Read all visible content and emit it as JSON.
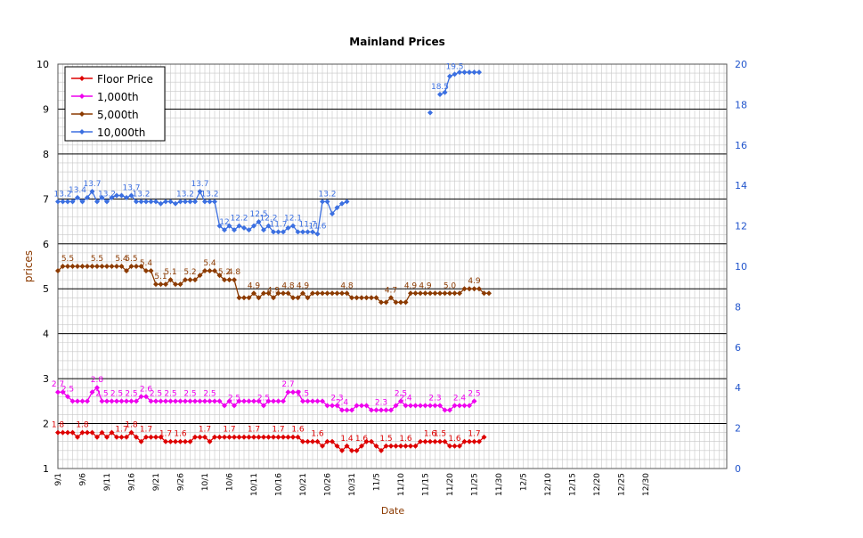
{
  "chart_data": {
    "type": "line",
    "title": "Mainland Prices",
    "xlabel": "Date",
    "ylabel": "prices",
    "y_left_range": [
      1,
      10
    ],
    "y_left_ticks": [
      "1",
      "2",
      "3",
      "4",
      "5",
      "6",
      "7",
      "8",
      "9",
      "10"
    ],
    "y_right_range": [
      0,
      20
    ],
    "y_right_ticks": [
      "0",
      "2",
      "4",
      "6",
      "8",
      "10",
      "12",
      "14",
      "16",
      "18",
      "20"
    ],
    "x_ticks": [
      "9/1",
      "9/6",
      "9/11",
      "9/16",
      "9/21",
      "9/26",
      "10/1",
      "10/6",
      "10/11",
      "10/16",
      "10/21",
      "10/26",
      "10/31",
      "11/5",
      "11/10",
      "11/15",
      "11/20",
      "11/25",
      "11/30",
      "12/5",
      "12/10",
      "12/15",
      "12/20",
      "12/25",
      "12/30"
    ],
    "grid": true,
    "legend_position": "top-left",
    "series": [
      {
        "name": "Floor Price",
        "axis": "left",
        "color": "#dd0000",
        "start_date": "9/1",
        "values": [
          1.8,
          1.8,
          1.8,
          1.8,
          1.7,
          1.8,
          1.8,
          1.8,
          1.7,
          1.8,
          1.7,
          1.8,
          1.7,
          1.7,
          1.7,
          1.8,
          1.7,
          1.6,
          1.7,
          1.7,
          1.7,
          1.7,
          1.6,
          1.6,
          1.6,
          1.6,
          1.6,
          1.6,
          1.7,
          1.7,
          1.7,
          1.6,
          1.7,
          1.7,
          1.7,
          1.7,
          1.7,
          1.7,
          1.7,
          1.7,
          1.7,
          1.7,
          1.7,
          1.7,
          1.7,
          1.7,
          1.7,
          1.7,
          1.7,
          1.7,
          1.6,
          1.6,
          1.6,
          1.6,
          1.5,
          1.6,
          1.6,
          1.5,
          1.4,
          1.5,
          1.4,
          1.4,
          1.5,
          1.6,
          1.6,
          1.5,
          1.4,
          1.5,
          1.5,
          1.5,
          1.5,
          1.5,
          1.5,
          1.5,
          1.6,
          1.6,
          1.6,
          1.6,
          1.6,
          1.6,
          1.5,
          1.5,
          1.5,
          1.6,
          1.6,
          1.6,
          1.6,
          1.7
        ],
        "labels": [
          {
            "date": "9/1",
            "text": "1.8"
          },
          {
            "date": "9/6",
            "text": "1.8"
          },
          {
            "date": "9/14",
            "text": "1.7"
          },
          {
            "date": "9/16",
            "text": "1.8"
          },
          {
            "date": "9/19",
            "text": "1.7"
          },
          {
            "date": "9/23",
            "text": "1.7"
          },
          {
            "date": "9/26",
            "text": "1.6"
          },
          {
            "date": "10/1",
            "text": "1.7"
          },
          {
            "date": "10/6",
            "text": "1.7"
          },
          {
            "date": "10/11",
            "text": "1.7"
          },
          {
            "date": "10/16",
            "text": "1.7"
          },
          {
            "date": "10/20",
            "text": "1.6"
          },
          {
            "date": "10/24",
            "text": "1.6"
          },
          {
            "date": "10/30",
            "text": "1.4"
          },
          {
            "date": "11/2",
            "text": "1.6"
          },
          {
            "date": "11/7",
            "text": "1.5"
          },
          {
            "date": "11/11",
            "text": "1.6"
          },
          {
            "date": "11/16",
            "text": "1.6"
          },
          {
            "date": "11/18",
            "text": "1.5"
          },
          {
            "date": "11/21",
            "text": "1.6"
          },
          {
            "date": "11/25",
            "text": "1.7"
          }
        ]
      },
      {
        "name": "1,000th",
        "axis": "left",
        "color": "#ee00ee",
        "start_date": "9/1",
        "values": [
          2.7,
          2.7,
          2.6,
          2.5,
          2.5,
          2.5,
          2.5,
          2.7,
          2.8,
          2.5,
          2.5,
          2.5,
          2.5,
          2.5,
          2.5,
          2.5,
          2.5,
          2.6,
          2.6,
          2.5,
          2.5,
          2.5,
          2.5,
          2.5,
          2.5,
          2.5,
          2.5,
          2.5,
          2.5,
          2.5,
          2.5,
          2.5,
          2.5,
          2.5,
          2.4,
          2.5,
          2.4,
          2.5,
          2.5,
          2.5,
          2.5,
          2.5,
          2.4,
          2.5,
          2.5,
          2.5,
          2.5,
          2.7,
          2.7,
          2.7,
          2.5,
          2.5,
          2.5,
          2.5,
          2.5,
          2.4,
          2.4,
          2.4,
          2.3,
          2.3,
          2.3,
          2.4,
          2.4,
          2.4,
          2.3,
          2.3,
          2.3,
          2.3,
          2.3,
          2.4,
          2.5,
          2.4,
          2.4,
          2.4,
          2.4,
          2.4,
          2.4,
          2.4,
          2.4,
          2.3,
          2.3,
          2.4,
          2.4,
          2.4,
          2.4,
          2.5
        ],
        "labels": [
          {
            "date": "9/1",
            "text": "2.7"
          },
          {
            "date": "9/3",
            "text": "2.5"
          },
          {
            "date": "9/9",
            "text": "2.8"
          },
          {
            "date": "9/10",
            "text": "2.5"
          },
          {
            "date": "9/13",
            "text": "2.5"
          },
          {
            "date": "9/16",
            "text": "2.5"
          },
          {
            "date": "9/19",
            "text": "2.6"
          },
          {
            "date": "9/21",
            "text": "2.5"
          },
          {
            "date": "9/24",
            "text": "2.5"
          },
          {
            "date": "9/28",
            "text": "2.5"
          },
          {
            "date": "10/2",
            "text": "2.5"
          },
          {
            "date": "10/7",
            "text": "2.5"
          },
          {
            "date": "10/13",
            "text": "2.5"
          },
          {
            "date": "10/18",
            "text": "2.7"
          },
          {
            "date": "10/21",
            "text": "2.5"
          },
          {
            "date": "10/28",
            "text": "2.3"
          },
          {
            "date": "10/29",
            "text": "2.4"
          },
          {
            "date": "11/6",
            "text": "2.3"
          },
          {
            "date": "11/10",
            "text": "2.5"
          },
          {
            "date": "11/11",
            "text": "2.4"
          },
          {
            "date": "11/17",
            "text": "2.3"
          },
          {
            "date": "11/22",
            "text": "2.4"
          },
          {
            "date": "11/25",
            "text": "2.5"
          }
        ]
      },
      {
        "name": "5,000th",
        "axis": "left",
        "color": "#8b3a00",
        "start_date": "9/1",
        "values": [
          5.4,
          5.5,
          5.5,
          5.5,
          5.5,
          5.5,
          5.5,
          5.5,
          5.5,
          5.5,
          5.5,
          5.5,
          5.5,
          5.5,
          5.4,
          5.5,
          5.5,
          5.5,
          5.4,
          5.4,
          5.1,
          5.1,
          5.1,
          5.2,
          5.1,
          5.1,
          5.2,
          5.2,
          5.2,
          5.3,
          5.4,
          5.4,
          5.4,
          5.3,
          5.2,
          5.2,
          5.2,
          4.8,
          4.8,
          4.8,
          4.9,
          4.8,
          4.9,
          4.9,
          4.8,
          4.9,
          4.9,
          4.9,
          4.8,
          4.8,
          4.9,
          4.8,
          4.9,
          4.9,
          4.9,
          4.9,
          4.9,
          4.9,
          4.9,
          4.9,
          4.8,
          4.8,
          4.8,
          4.8,
          4.8,
          4.8,
          4.7,
          4.7,
          4.8,
          4.7,
          4.7,
          4.7,
          4.9,
          4.9,
          4.9,
          4.9,
          4.9,
          4.9,
          4.9,
          4.9,
          4.9,
          4.9,
          4.9,
          5.0,
          5.0,
          5.0,
          5.0,
          4.9,
          4.9
        ],
        "labels": [
          {
            "date": "9/3",
            "text": "5.5"
          },
          {
            "date": "9/9",
            "text": "5.5"
          },
          {
            "date": "9/14",
            "text": "5.4"
          },
          {
            "date": "9/16",
            "text": "5.5"
          },
          {
            "date": "9/19",
            "text": "5.4"
          },
          {
            "date": "9/22",
            "text": "5.1"
          },
          {
            "date": "9/24",
            "text": "5.1"
          },
          {
            "date": "9/28",
            "text": "5.2"
          },
          {
            "date": "10/2",
            "text": "5.4"
          },
          {
            "date": "10/5",
            "text": "5.2"
          },
          {
            "date": "10/7",
            "text": "4.8"
          },
          {
            "date": "10/11",
            "text": "4.9"
          },
          {
            "date": "10/15",
            "text": "4.9"
          },
          {
            "date": "10/18",
            "text": "4.8"
          },
          {
            "date": "10/21",
            "text": "4.9"
          },
          {
            "date": "10/30",
            "text": "4.8"
          },
          {
            "date": "11/8",
            "text": "4.7"
          },
          {
            "date": "11/12",
            "text": "4.9"
          },
          {
            "date": "11/15",
            "text": "4.9"
          },
          {
            "date": "11/20",
            "text": "5.0"
          },
          {
            "date": "11/25",
            "text": "4.9"
          }
        ]
      },
      {
        "name": "10,000th",
        "axis": "right",
        "color": "#3b6fe0",
        "start_date": "9/1",
        "values": [
          13.2,
          13.2,
          13.2,
          13.2,
          13.4,
          13.2,
          13.4,
          13.7,
          13.2,
          13.4,
          13.2,
          13.4,
          13.5,
          13.5,
          13.4,
          13.5,
          13.2,
          13.2,
          13.2,
          13.2,
          13.2,
          13.1,
          13.2,
          13.2,
          13.1,
          13.2,
          13.2,
          13.2,
          13.2,
          13.7,
          13.2,
          13.2,
          13.2,
          12.0,
          11.8,
          12.0,
          11.8,
          12.0,
          11.9,
          11.8,
          12.0,
          12.2,
          11.8,
          12.0,
          11.7,
          11.7,
          11.7,
          11.9,
          12.0,
          11.7,
          11.7,
          11.7,
          11.7,
          11.6,
          13.2,
          13.2,
          12.6,
          12.9,
          13.1,
          13.2,
          null,
          null,
          null,
          null,
          null,
          null,
          null,
          null,
          null,
          null,
          null,
          null,
          null,
          null,
          null,
          null,
          17.6,
          null,
          18.5,
          18.6,
          19.4,
          19.5,
          19.6,
          19.6,
          19.6,
          19.6,
          19.6
        ],
        "labels": [
          {
            "date": "9/2",
            "text": "13.2"
          },
          {
            "date": "9/5",
            "text": "13.4"
          },
          {
            "date": "9/8",
            "text": "13.7"
          },
          {
            "date": "9/11",
            "text": "13.2"
          },
          {
            "date": "9/16",
            "text": "13.7"
          },
          {
            "date": "9/18",
            "text": "13.2"
          },
          {
            "date": "9/27",
            "text": "13.2"
          },
          {
            "date": "9/30",
            "text": "13.7"
          },
          {
            "date": "10/2",
            "text": "13.2"
          },
          {
            "date": "10/5",
            "text": "12"
          },
          {
            "date": "10/8",
            "text": "12.2"
          },
          {
            "date": "10/12",
            "text": "12.5"
          },
          {
            "date": "10/14",
            "text": "12.2"
          },
          {
            "date": "10/16",
            "text": "11.7"
          },
          {
            "date": "10/19",
            "text": "12.1"
          },
          {
            "date": "10/22",
            "text": "11.7"
          },
          {
            "date": "10/24",
            "text": "11.6"
          },
          {
            "date": "10/26",
            "text": "13.2"
          },
          {
            "date": "10/31",
            "text": "13.2"
          },
          {
            "date": "11/15",
            "text": "17.6"
          },
          {
            "date": "11/18",
            "text": "18.5"
          },
          {
            "date": "11/21",
            "text": "19.5"
          }
        ]
      }
    ]
  }
}
